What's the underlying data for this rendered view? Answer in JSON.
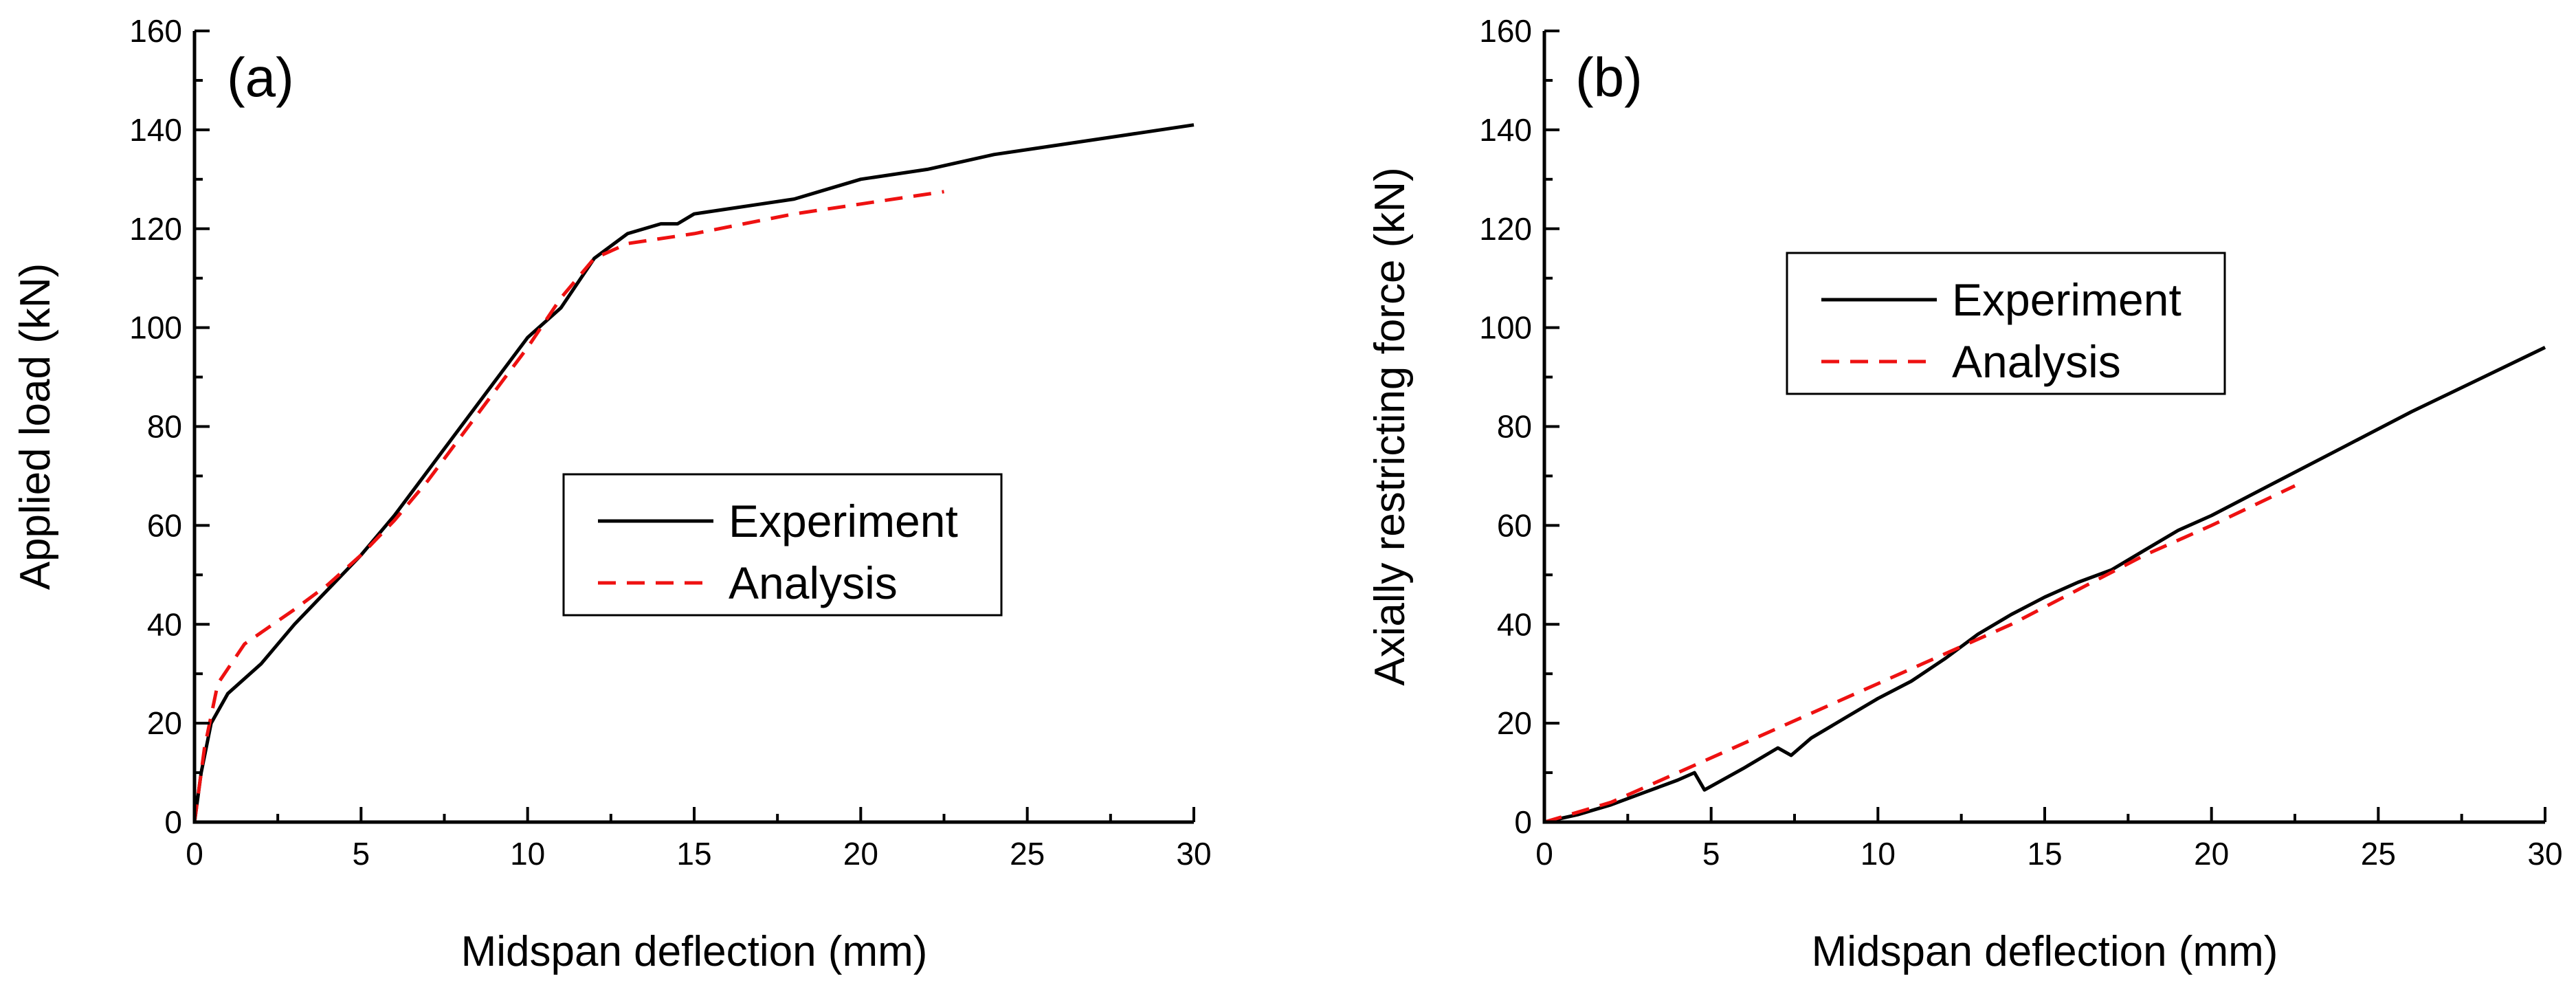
{
  "chart_data": [
    {
      "type": "line",
      "panel_label": "(a)",
      "xlabel": "Midspan deflection (mm)",
      "ylabel": "Applied load (kN)",
      "xlim": [
        0,
        30
      ],
      "ylim": [
        0,
        160
      ],
      "xticks": [
        "0",
        "5",
        "10",
        "15",
        "20",
        "25",
        "30"
      ],
      "yticks": [
        "0",
        "20",
        "40",
        "60",
        "80",
        "100",
        "120",
        "140",
        "160"
      ],
      "legend": {
        "position": "center-right",
        "entries": [
          "Experiment",
          "Analysis"
        ]
      },
      "series": [
        {
          "name": "Experiment",
          "style": "solid",
          "color": "#000000",
          "x": [
            0,
            0.2,
            0.5,
            1,
            2,
            3,
            4,
            5,
            6,
            7,
            8,
            9,
            10,
            11,
            12,
            13,
            14,
            14.5,
            15,
            16,
            17,
            18,
            19,
            20,
            22,
            24,
            26,
            28,
            30
          ],
          "y": [
            0,
            10,
            20,
            26,
            32,
            40,
            47,
            54,
            62,
            71,
            80,
            89,
            98,
            104,
            114,
            119,
            121,
            121,
            123,
            124,
            125,
            126,
            128,
            130,
            132,
            135,
            137,
            139,
            141
          ]
        },
        {
          "name": "Analysis",
          "style": "dashed",
          "color": "#ee1111",
          "x": [
            0,
            0.3,
            0.7,
            1.5,
            3,
            4,
            5,
            6,
            7,
            8,
            9,
            10,
            11,
            12,
            13,
            15,
            18,
            20,
            22.5
          ],
          "y": [
            0,
            15,
            28,
            36,
            43,
            48,
            54,
            61,
            69,
            78,
            87,
            96,
            106,
            114,
            117,
            119,
            123,
            125,
            127.5
          ]
        }
      ]
    },
    {
      "type": "line",
      "panel_label": "(b)",
      "xlabel": "Midspan deflection (mm)",
      "ylabel": "Axially restricting force (kN)",
      "xlim": [
        0,
        30
      ],
      "ylim": [
        0,
        160
      ],
      "xticks": [
        "0",
        "5",
        "10",
        "15",
        "20",
        "25",
        "30"
      ],
      "yticks": [
        "0",
        "20",
        "40",
        "60",
        "80",
        "100",
        "120",
        "140",
        "160"
      ],
      "legend": {
        "position": "upper-center",
        "entries": [
          "Experiment",
          "Analysis"
        ]
      },
      "series": [
        {
          "name": "Experiment",
          "style": "solid",
          "color": "#000000",
          "x": [
            0,
            1,
            2,
            3,
            4,
            4.5,
            4.8,
            6,
            7,
            7.4,
            8,
            9,
            10,
            11,
            12,
            13,
            14,
            15,
            16,
            17,
            18,
            19,
            20,
            22,
            24,
            26,
            28,
            30
          ],
          "y": [
            0,
            1.5,
            3.5,
            6,
            8.5,
            10,
            6.5,
            11,
            15,
            13.5,
            17,
            21,
            25,
            28.5,
            33,
            38,
            42,
            45.5,
            48.5,
            51,
            55,
            59,
            62,
            69,
            76,
            83,
            89.5,
            96
          ]
        },
        {
          "name": "Analysis",
          "style": "dashed",
          "color": "#ee1111",
          "x": [
            0,
            2,
            4,
            6,
            8,
            10,
            12,
            14,
            16,
            18,
            20,
            22.5
          ],
          "y": [
            0,
            4,
            10,
            16,
            22,
            28,
            34,
            40,
            47,
            54,
            60,
            68
          ]
        }
      ]
    }
  ]
}
